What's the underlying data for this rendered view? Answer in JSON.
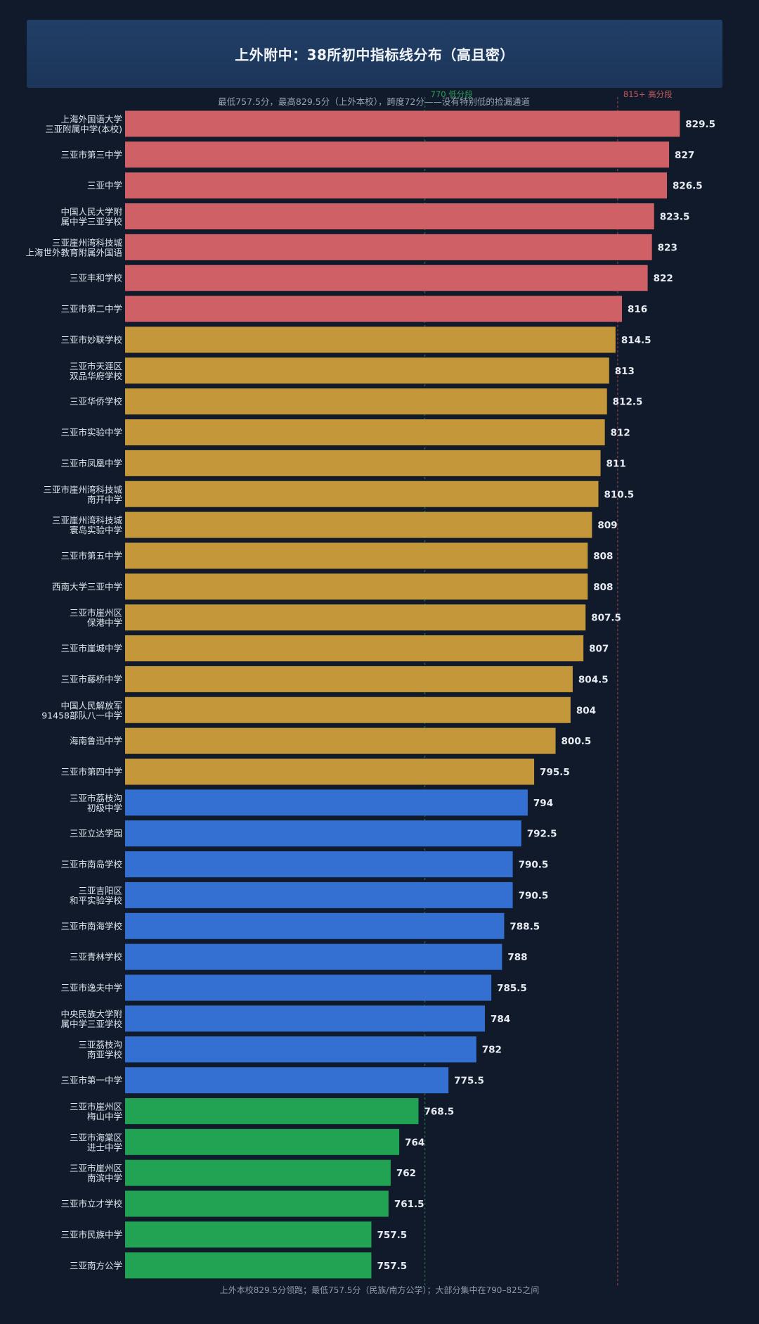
{
  "title": "上外附中：38所初中指标线分布（高且密）",
  "subtitle": "最低757.5分，最高829.5分（上外本校），跨度72分——没有特别低的捡漏通道",
  "footer": "上外本校829.5分领跑；最低757.5分（民族/南方公学）；大部分集中在790–825之间",
  "colors": {
    "background": "#111a2b",
    "high": "#cf6166",
    "mid": "#c4973a",
    "lower": "#3370d1",
    "low": "#22a353",
    "value_label": "#e8ecf2",
    "school_label": "#dfe4ec",
    "ref_low": "#2ca05a",
    "ref_high": "#c85a5f"
  },
  "chart_data": {
    "type": "bar",
    "orientation": "horizontal",
    "xlim": [
      700,
      837
    ],
    "reference_lines": [
      {
        "value": 770,
        "label": "770 低分段",
        "color_key": "ref_low"
      },
      {
        "value": 815,
        "label": "815+ 高分段",
        "color_key": "ref_high"
      }
    ],
    "categories": [
      [
        "上海外国语大学",
        "三亚附属中学(本校)"
      ],
      [
        "三亚市第三中学"
      ],
      [
        "三亚中学"
      ],
      [
        "中国人民大学附",
        "属中学三亚学校"
      ],
      [
        "三亚崖州湾科技城",
        "上海世外教育附属外国语"
      ],
      [
        "三亚丰和学校"
      ],
      [
        "三亚市第二中学"
      ],
      [
        "三亚市妙联学校"
      ],
      [
        "三亚市天涯区",
        "双品华府学校"
      ],
      [
        "三亚华侨学校"
      ],
      [
        "三亚市实验中学"
      ],
      [
        "三亚市凤凰中学"
      ],
      [
        "三亚市崖州湾科技城",
        "南开中学"
      ],
      [
        "三亚崖州湾科技城",
        "寰岛实验中学"
      ],
      [
        "三亚市第五中学"
      ],
      [
        "西南大学三亚中学"
      ],
      [
        "三亚市崖州区",
        "保港中学"
      ],
      [
        "三亚市崖城中学"
      ],
      [
        "三亚市藤桥中学"
      ],
      [
        "中国人民解放军",
        "91458部队八一中学"
      ],
      [
        "海南鲁迅中学"
      ],
      [
        "三亚市第四中学"
      ],
      [
        "三亚市荔枝沟",
        "初级中学"
      ],
      [
        "三亚立达学园"
      ],
      [
        "三亚市南岛学校"
      ],
      [
        "三亚吉阳区",
        "和平实验学校"
      ],
      [
        "三亚市南海学校"
      ],
      [
        "三亚青林学校"
      ],
      [
        "三亚市逸夫中学"
      ],
      [
        "中央民族大学附",
        "属中学三亚学校"
      ],
      [
        "三亚荔枝沟",
        "南亚学校"
      ],
      [
        "三亚市第一中学"
      ],
      [
        "三亚市崖州区",
        "梅山中学"
      ],
      [
        "三亚市海棠区",
        "进士中学"
      ],
      [
        "三亚市崖州区",
        "南滨中学"
      ],
      [
        "三亚市立才学校"
      ],
      [
        "三亚市民族中学"
      ],
      [
        "三亚南方公学"
      ]
    ],
    "values": [
      829.5,
      827,
      826.5,
      823.5,
      823,
      822,
      816,
      814.5,
      813,
      812.5,
      812,
      811,
      810.5,
      809,
      808,
      808,
      807.5,
      807,
      804.5,
      804,
      800.5,
      795.5,
      794,
      792.5,
      790.5,
      790.5,
      788.5,
      788,
      785.5,
      784,
      782,
      775.5,
      768.5,
      764,
      762,
      761.5,
      757.5,
      757.5
    ],
    "value_labels": [
      "829.5",
      "827",
      "826.5",
      "823.5",
      "823",
      "822",
      "816",
      "814.5",
      "813",
      "812.5",
      "812",
      "811",
      "810.5",
      "809",
      "808",
      "808",
      "807.5",
      "807",
      "804.5",
      "804",
      "800.5",
      "795.5",
      "794",
      "792.5",
      "790.5",
      "790.5",
      "788.5",
      "788",
      "785.5",
      "784",
      "782",
      "775.5",
      "768.5",
      "764",
      "762",
      "761.5",
      "757.5",
      "757.5"
    ],
    "color_groups": [
      "high",
      "high",
      "high",
      "high",
      "high",
      "high",
      "high",
      "mid",
      "mid",
      "mid",
      "mid",
      "mid",
      "mid",
      "mid",
      "mid",
      "mid",
      "mid",
      "mid",
      "mid",
      "mid",
      "mid",
      "mid",
      "lower",
      "lower",
      "lower",
      "lower",
      "lower",
      "lower",
      "lower",
      "lower",
      "lower",
      "lower",
      "low",
      "low",
      "low",
      "low",
      "low",
      "low"
    ]
  }
}
